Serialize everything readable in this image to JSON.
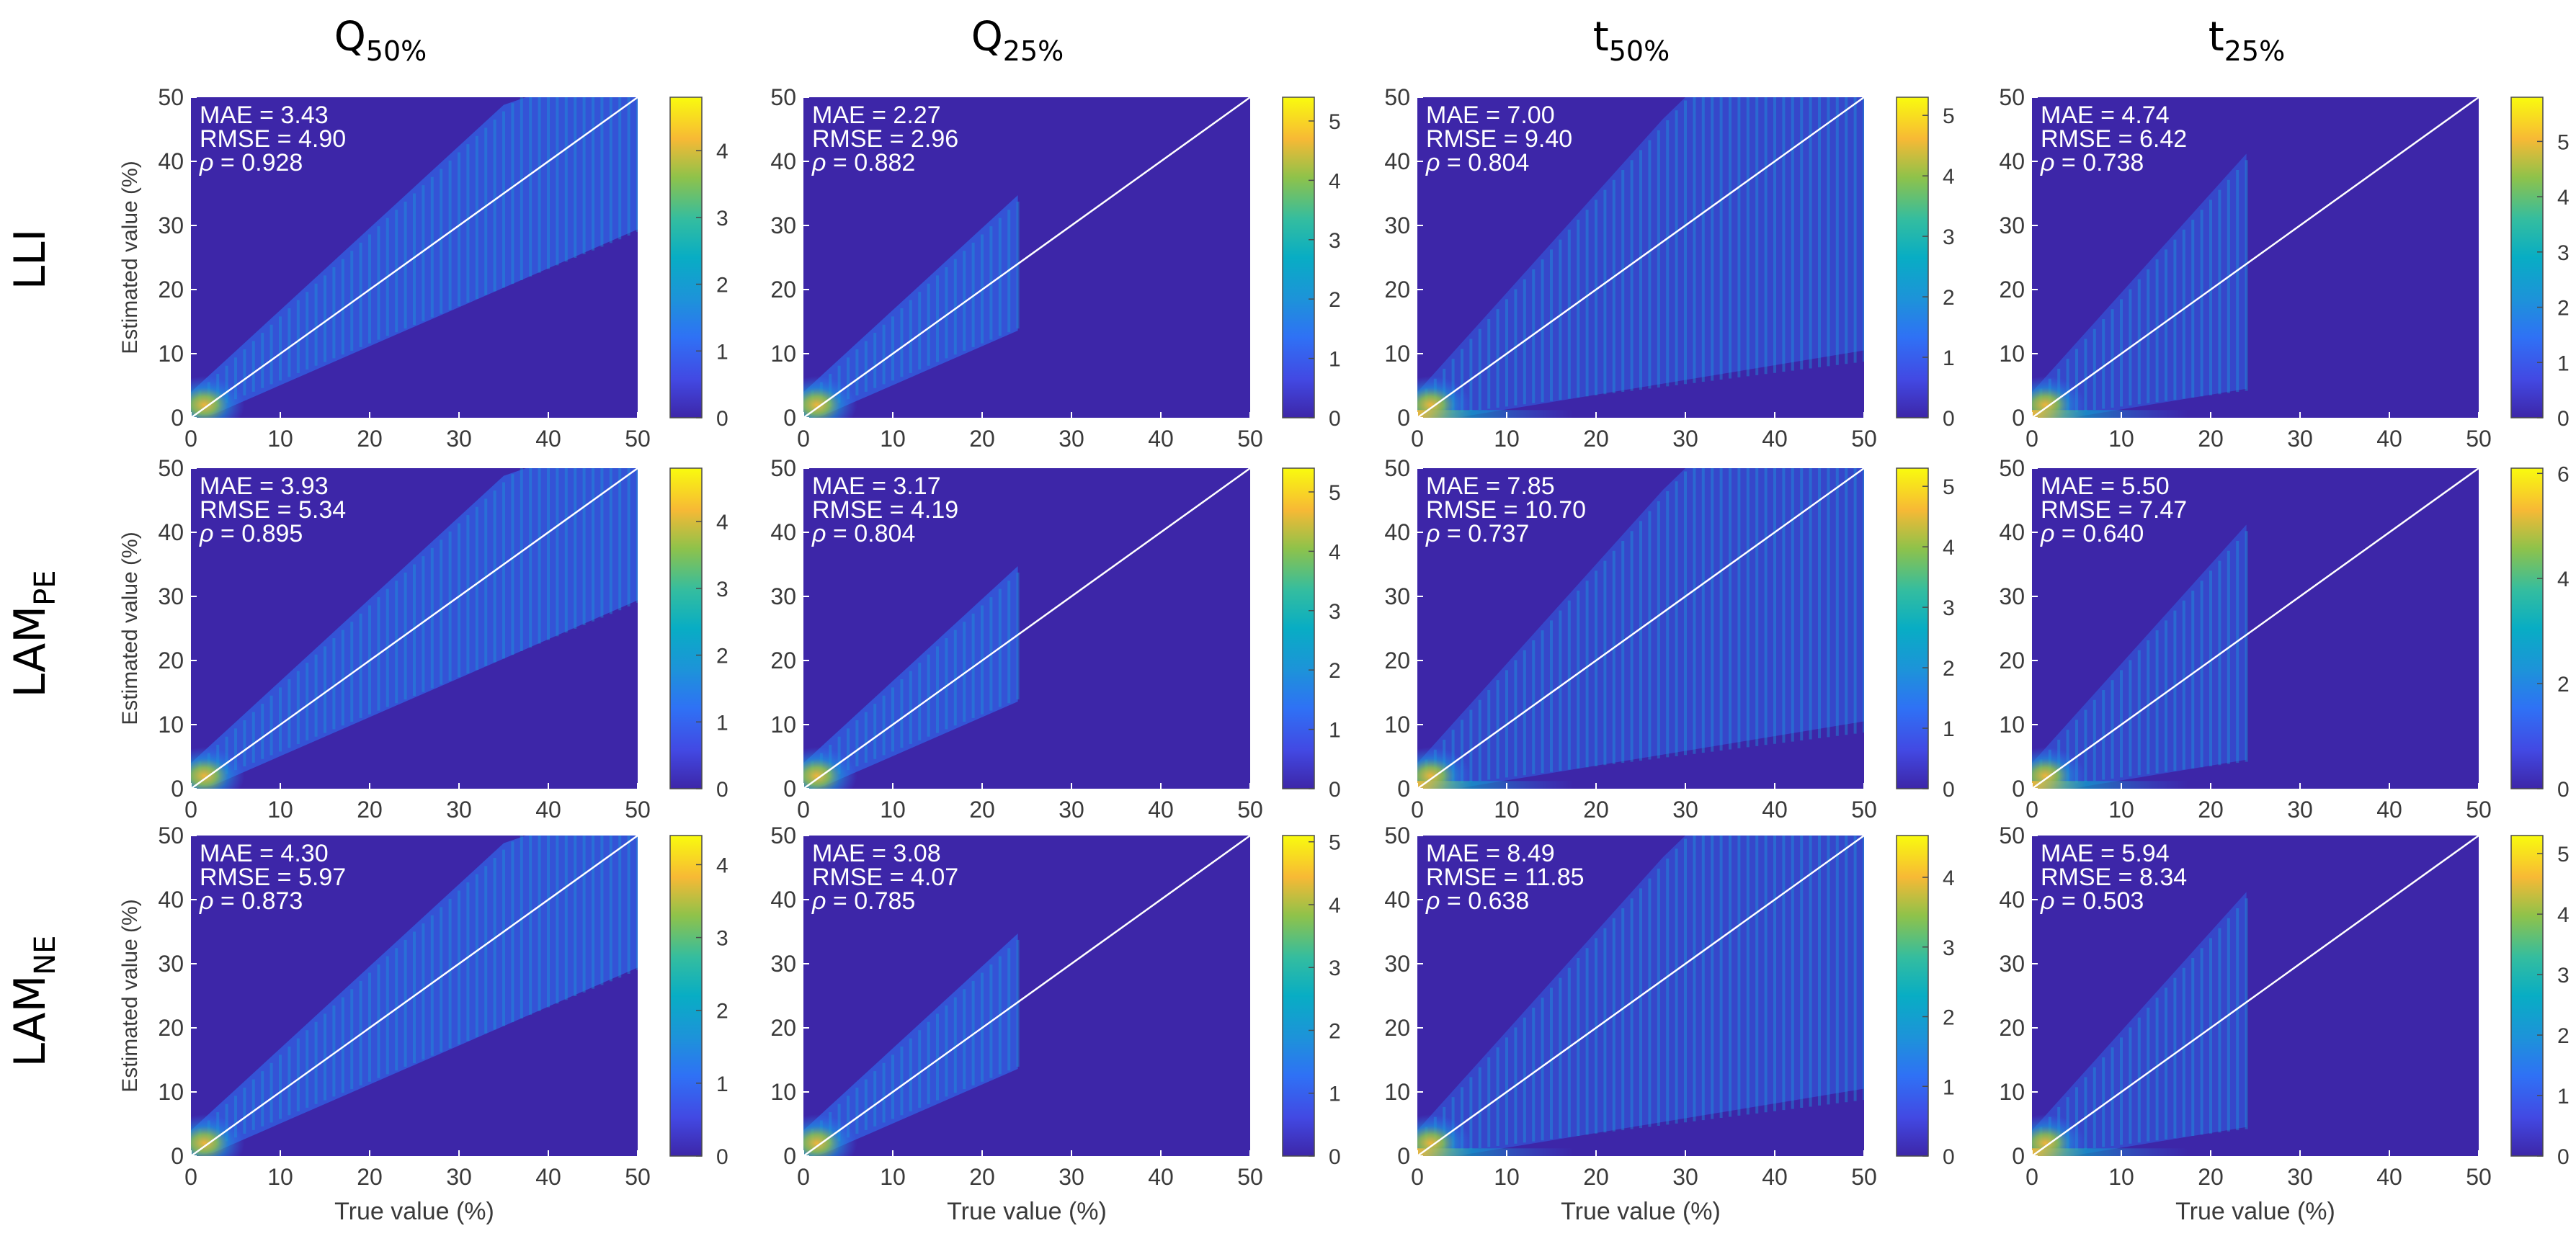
{
  "figure": {
    "x_axis_label": "True value (%)",
    "y_axis_label": "Estimated value (%)",
    "x_ticks": [
      "0",
      "10",
      "20",
      "30",
      "40",
      "50"
    ],
    "y_ticks": [
      "0",
      "10",
      "20",
      "30",
      "40",
      "50"
    ],
    "columns": [
      {
        "base": "Q",
        "sub": "50%"
      },
      {
        "base": "Q",
        "sub": "25%"
      },
      {
        "base": "t",
        "sub": "50%"
      },
      {
        "base": "t",
        "sub": "25%"
      }
    ],
    "rows": [
      {
        "base": "LLI",
        "sub": ""
      },
      {
        "base": "LAM",
        "sub": "PE"
      },
      {
        "base": "LAM",
        "sub": "NE"
      }
    ],
    "colors": {
      "background_dark": "#3d26a8",
      "identity_line": "#ffffff",
      "axis_text": "#3a3a3a"
    },
    "colormap": "parula"
  },
  "chart_data": [
    {
      "type": "heatmap",
      "row": "LLI",
      "column": "Q50%",
      "xlabel": "",
      "ylabel": "Estimated value (%)",
      "xlim": [
        0,
        50
      ],
      "ylim": [
        0,
        50
      ],
      "true_max": 50,
      "colorbar_ticks": [
        "0",
        "1",
        "2",
        "3",
        "4"
      ],
      "colorbar_max": 4.8,
      "stats": {
        "mae": "MAE = 3.43",
        "rmse": "RMSE = 4.90",
        "rho_label": "ρ",
        "rho_value": " = 0.928"
      }
    },
    {
      "type": "heatmap",
      "row": "LLI",
      "column": "Q25%",
      "xlabel": "",
      "ylabel": "",
      "xlim": [
        0,
        50
      ],
      "ylim": [
        0,
        50
      ],
      "true_max": 24,
      "colorbar_ticks": [
        "0",
        "1",
        "2",
        "3",
        "4",
        "5"
      ],
      "colorbar_max": 5.4,
      "stats": {
        "mae": "MAE = 2.27",
        "rmse": "RMSE = 2.96",
        "rho_label": "ρ",
        "rho_value": " = 0.882"
      }
    },
    {
      "type": "heatmap",
      "row": "LLI",
      "column": "t50%",
      "xlabel": "",
      "ylabel": "",
      "xlim": [
        0,
        50
      ],
      "ylim": [
        0,
        50
      ],
      "true_max": 50,
      "colorbar_ticks": [
        "0",
        "1",
        "2",
        "3",
        "4",
        "5"
      ],
      "colorbar_max": 5.3,
      "stats": {
        "mae": "MAE = 7.00",
        "rmse": "RMSE = 9.40",
        "rho_label": "ρ",
        "rho_value": " = 0.804"
      }
    },
    {
      "type": "heatmap",
      "row": "LLI",
      "column": "t25%",
      "xlabel": "",
      "ylabel": "",
      "xlim": [
        0,
        50
      ],
      "ylim": [
        0,
        50
      ],
      "true_max": 24,
      "colorbar_ticks": [
        "0",
        "1",
        "2",
        "3",
        "4",
        "5"
      ],
      "colorbar_max": 5.8,
      "stats": {
        "mae": "MAE = 4.74",
        "rmse": "RMSE = 6.42",
        "rho_label": "ρ",
        "rho_value": " = 0.738"
      }
    },
    {
      "type": "heatmap",
      "row": "LAM_PE",
      "column": "Q50%",
      "xlabel": "",
      "ylabel": "Estimated value (%)",
      "xlim": [
        0,
        50
      ],
      "ylim": [
        0,
        50
      ],
      "true_max": 50,
      "colorbar_ticks": [
        "0",
        "1",
        "2",
        "3",
        "4"
      ],
      "colorbar_max": 4.8,
      "stats": {
        "mae": "MAE = 3.93",
        "rmse": "RMSE = 5.34",
        "rho_label": "ρ",
        "rho_value": " = 0.895"
      }
    },
    {
      "type": "heatmap",
      "row": "LAM_PE",
      "column": "Q25%",
      "xlabel": "",
      "ylabel": "",
      "xlim": [
        0,
        50
      ],
      "ylim": [
        0,
        50
      ],
      "true_max": 24,
      "colorbar_ticks": [
        "0",
        "1",
        "2",
        "3",
        "4",
        "5"
      ],
      "colorbar_max": 5.4,
      "stats": {
        "mae": "MAE = 3.17",
        "rmse": "RMSE = 4.19",
        "rho_label": "ρ",
        "rho_value": " = 0.804"
      }
    },
    {
      "type": "heatmap",
      "row": "LAM_PE",
      "column": "t50%",
      "xlabel": "",
      "ylabel": "",
      "xlim": [
        0,
        50
      ],
      "ylim": [
        0,
        50
      ],
      "true_max": 50,
      "colorbar_ticks": [
        "0",
        "1",
        "2",
        "3",
        "4",
        "5"
      ],
      "colorbar_max": 5.3,
      "stats": {
        "mae": "MAE = 7.85",
        "rmse": "RMSE = 10.70",
        "rho_label": "ρ",
        "rho_value": " = 0.737"
      }
    },
    {
      "type": "heatmap",
      "row": "LAM_PE",
      "column": "t25%",
      "xlabel": "",
      "ylabel": "",
      "xlim": [
        0,
        50
      ],
      "ylim": [
        0,
        50
      ],
      "true_max": 24,
      "colorbar_ticks": [
        "0",
        "2",
        "4",
        "6"
      ],
      "colorbar_max": 6.1,
      "stats": {
        "mae": "MAE = 5.50",
        "rmse": "RMSE = 7.47",
        "rho_label": "ρ",
        "rho_value": " = 0.640"
      }
    },
    {
      "type": "heatmap",
      "row": "LAM_NE",
      "column": "Q50%",
      "xlabel": "True value (%)",
      "ylabel": "Estimated value (%)",
      "xlim": [
        0,
        50
      ],
      "ylim": [
        0,
        50
      ],
      "true_max": 50,
      "colorbar_ticks": [
        "0",
        "1",
        "2",
        "3",
        "4"
      ],
      "colorbar_max": 4.4,
      "stats": {
        "mae": "MAE = 4.30",
        "rmse": "RMSE = 5.97",
        "rho_label": "ρ",
        "rho_value": " = 0.873"
      }
    },
    {
      "type": "heatmap",
      "row": "LAM_NE",
      "column": "Q25%",
      "xlabel": "True value (%)",
      "ylabel": "",
      "xlim": [
        0,
        50
      ],
      "ylim": [
        0,
        50
      ],
      "true_max": 24,
      "colorbar_ticks": [
        "0",
        "1",
        "2",
        "3",
        "4",
        "5"
      ],
      "colorbar_max": 5.1,
      "stats": {
        "mae": "MAE = 3.08",
        "rmse": "RMSE = 4.07",
        "rho_label": "ρ",
        "rho_value": " = 0.785"
      }
    },
    {
      "type": "heatmap",
      "row": "LAM_NE",
      "column": "t50%",
      "xlabel": "True value (%)",
      "ylabel": "",
      "xlim": [
        0,
        50
      ],
      "ylim": [
        0,
        50
      ],
      "true_max": 50,
      "colorbar_ticks": [
        "0",
        "1",
        "2",
        "3",
        "4"
      ],
      "colorbar_max": 4.6,
      "stats": {
        "mae": "MAE = 8.49",
        "rmse": "RMSE = 11.85",
        "rho_label": "ρ",
        "rho_value": " = 0.638"
      }
    },
    {
      "type": "heatmap",
      "row": "LAM_NE",
      "column": "t25%",
      "xlabel": "True value (%)",
      "ylabel": "",
      "xlim": [
        0,
        50
      ],
      "ylim": [
        0,
        50
      ],
      "true_max": 24,
      "colorbar_ticks": [
        "0",
        "1",
        "2",
        "3",
        "4",
        "5"
      ],
      "colorbar_max": 5.3,
      "stats": {
        "mae": "MAE = 5.94",
        "rmse": "RMSE = 8.34",
        "rho_label": "ρ",
        "rho_value": " = 0.503"
      }
    }
  ]
}
